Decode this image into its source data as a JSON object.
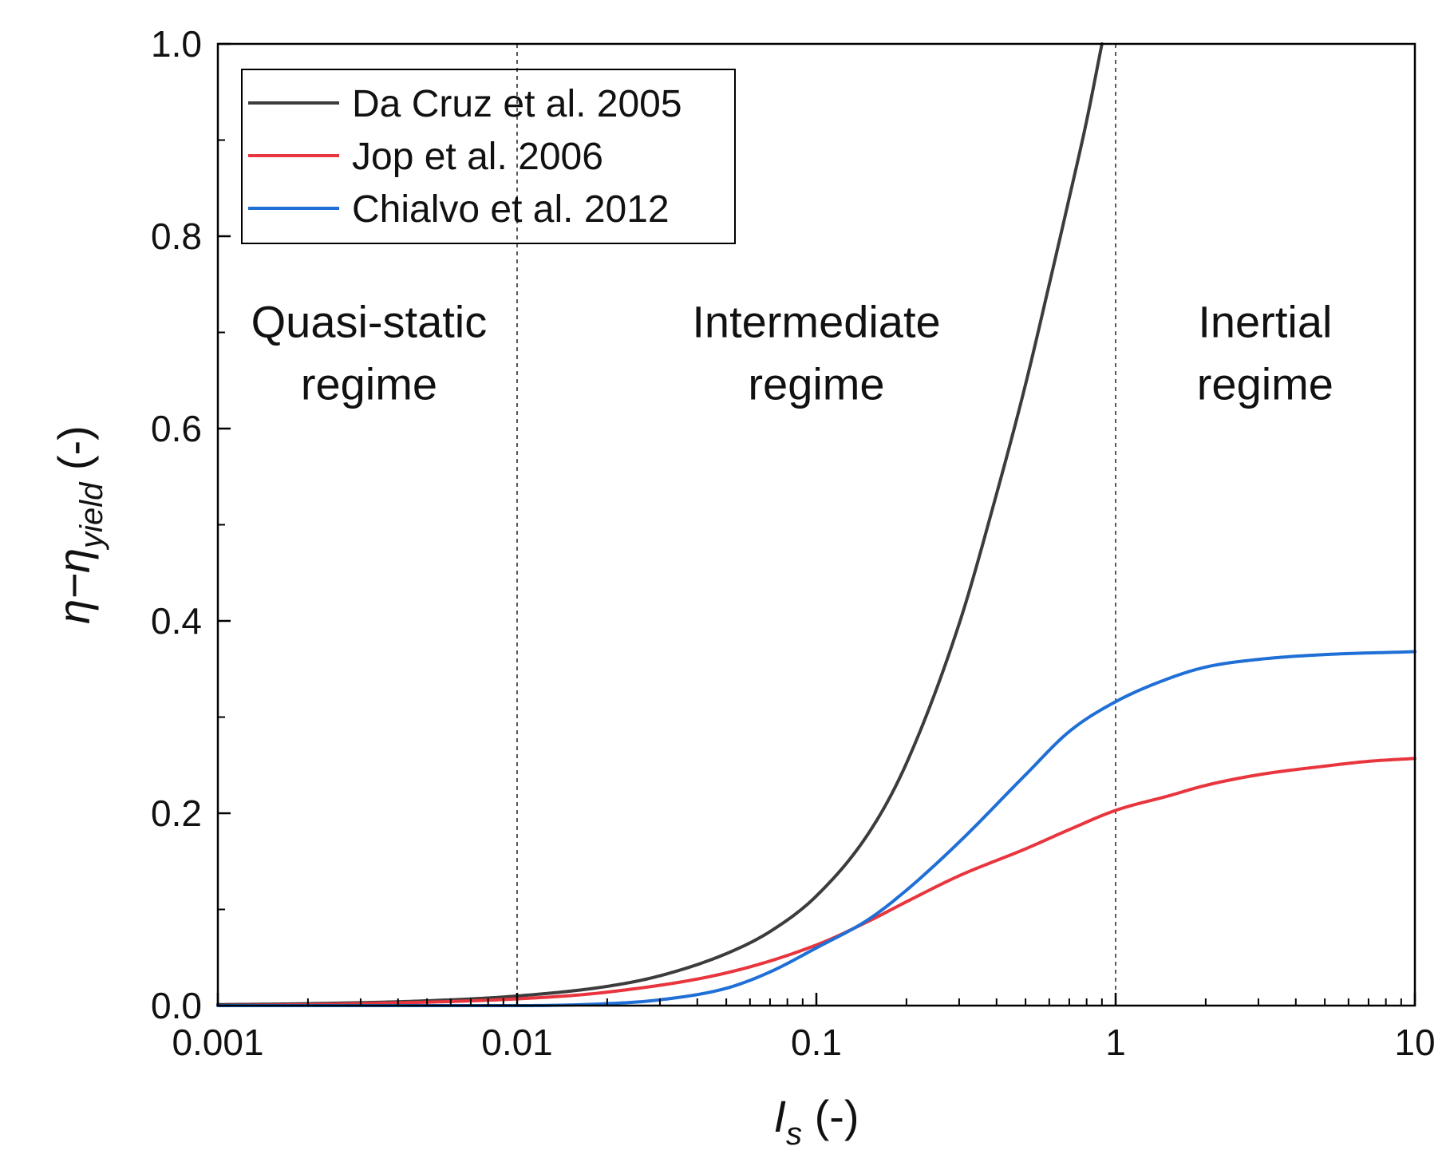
{
  "chart_data": {
    "type": "line",
    "title": "",
    "xlabel": {
      "main": "I",
      "sub": "s",
      "suffix": " (-)"
    },
    "ylabel": {
      "main": "η−η",
      "sub": "yield",
      "suffix": " (-)"
    },
    "xscale": "log",
    "xlim": [
      0.001,
      10
    ],
    "ylim": [
      0,
      1.0
    ],
    "x_ticks": [
      {
        "value": 0.001,
        "label": "0.001"
      },
      {
        "value": 0.01,
        "label": "0.01"
      },
      {
        "value": 0.1,
        "label": "0.1"
      },
      {
        "value": 1,
        "label": "1"
      },
      {
        "value": 10,
        "label": "10"
      }
    ],
    "y_ticks": [
      {
        "value": 0.0,
        "label": "0.0"
      },
      {
        "value": 0.2,
        "label": "0.2"
      },
      {
        "value": 0.4,
        "label": "0.4"
      },
      {
        "value": 0.6,
        "label": "0.6"
      },
      {
        "value": 0.8,
        "label": "0.8"
      },
      {
        "value": 1.0,
        "label": "1.0"
      }
    ],
    "y_minor_step": 0.1,
    "legend_position": "top-left",
    "vertical_reference_lines": [
      0.01,
      1
    ],
    "regions": [
      {
        "lines": [
          "Quasi-static",
          "regime"
        ],
        "x_center": 0.0032,
        "y_top": 0.695
      },
      {
        "lines": [
          "Intermediate",
          "regime"
        ],
        "x_center": 0.1,
        "y_top": 0.695
      },
      {
        "lines": [
          "Inertial",
          "regime"
        ],
        "x_center": 3.16,
        "y_top": 0.695
      }
    ],
    "series": [
      {
        "name": "Da Cruz et al. 2005",
        "color": "#3c3c3c",
        "x": [
          0.001,
          0.002,
          0.005,
          0.01,
          0.02,
          0.03,
          0.05,
          0.07,
          0.1,
          0.15,
          0.2,
          0.3,
          0.4,
          0.5,
          0.6,
          0.7,
          0.8,
          0.9
        ],
        "y": [
          0.001,
          0.002,
          0.005,
          0.01,
          0.02,
          0.031,
          0.054,
          0.077,
          0.114,
          0.18,
          0.252,
          0.397,
          0.532,
          0.646,
          0.75,
          0.84,
          0.92,
          1.0
        ]
      },
      {
        "name": "Jop et al. 2006",
        "color": "#e8353e",
        "x": [
          0.001,
          0.003,
          0.01,
          0.02,
          0.05,
          0.1,
          0.15,
          0.2,
          0.3,
          0.5,
          0.7,
          1,
          1.5,
          2,
          3,
          5,
          7,
          10
        ],
        "y": [
          0.0,
          0.002,
          0.007,
          0.014,
          0.034,
          0.063,
          0.088,
          0.108,
          0.135,
          0.163,
          0.183,
          0.203,
          0.218,
          0.229,
          0.24,
          0.249,
          0.254,
          0.257
        ]
      },
      {
        "name": "Chialvo et al. 2012",
        "color": "#1f6fd6",
        "x": [
          0.001,
          0.01,
          0.02,
          0.03,
          0.05,
          0.07,
          0.1,
          0.15,
          0.2,
          0.3,
          0.5,
          0.7,
          1,
          1.5,
          2,
          3,
          5,
          10
        ],
        "y": [
          0.0,
          0.0,
          0.002,
          0.006,
          0.018,
          0.035,
          0.06,
          0.09,
          0.12,
          0.17,
          0.24,
          0.285,
          0.316,
          0.34,
          0.352,
          0.36,
          0.365,
          0.368
        ]
      }
    ]
  }
}
